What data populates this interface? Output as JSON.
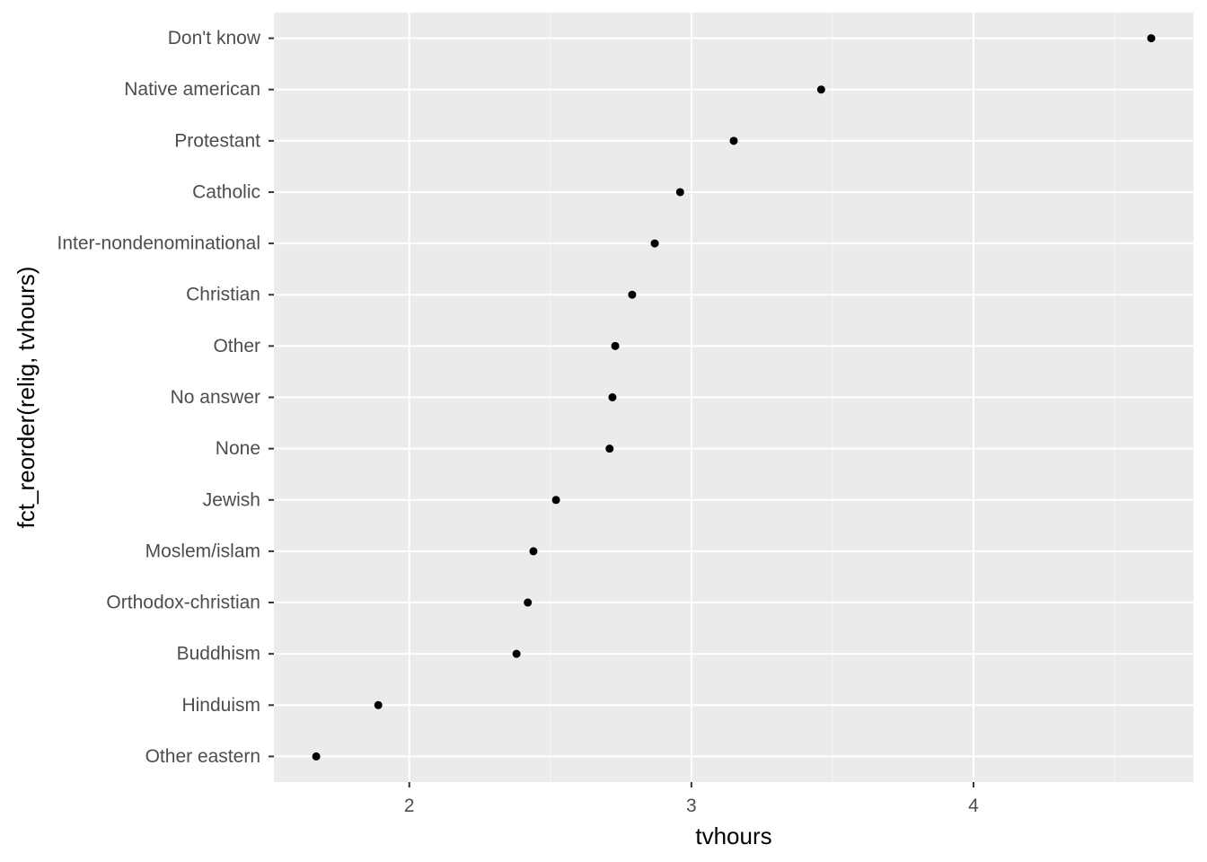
{
  "chart_data": {
    "type": "scatter",
    "title": "",
    "xlabel": "tvhours",
    "ylabel": "fct_reorder(relig, tvhours)",
    "xlim": [
      1.52,
      4.78
    ],
    "x_ticks": [
      2,
      3,
      4
    ],
    "grid": true,
    "colors": {
      "panel_background": "#ebebeb",
      "grid_major": "#ffffff",
      "point": "#000000",
      "tick_text": "#4d4d4d",
      "axis_title": "#000000",
      "tick_mark": "#333333"
    },
    "categories": [
      "Other eastern",
      "Hinduism",
      "Buddhism",
      "Orthodox-christian",
      "Moslem/islam",
      "Jewish",
      "None",
      "No answer",
      "Other",
      "Christian",
      "Inter-nondenominational",
      "Catholic",
      "Protestant",
      "Native american",
      "Don't know"
    ],
    "values": [
      1.67,
      1.89,
      2.38,
      2.42,
      2.44,
      2.52,
      2.71,
      2.72,
      2.73,
      2.79,
      2.87,
      2.96,
      3.15,
      3.46,
      4.63
    ]
  }
}
